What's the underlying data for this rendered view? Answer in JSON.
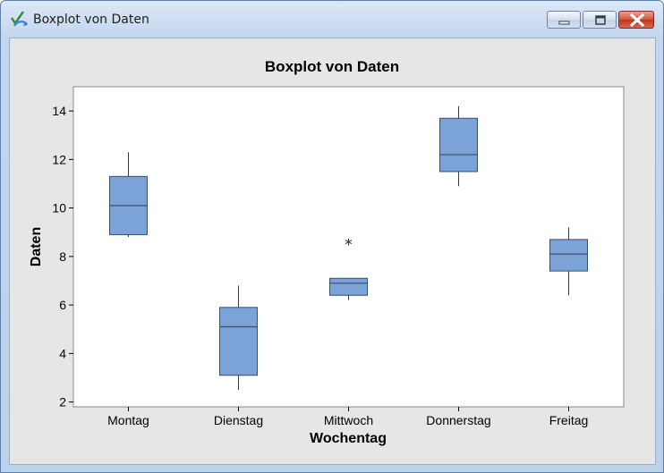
{
  "window": {
    "title": "Boxplot von Daten",
    "icon": "minitab-graph-icon",
    "controls": {
      "minimize": "minimize-icon",
      "maximize": "maximize-icon",
      "close": "close-icon"
    }
  },
  "chart_data": {
    "type": "boxplot",
    "title": "Boxplot von Daten",
    "xlabel": "Wochentag",
    "ylabel": "Daten",
    "ylim": [
      1.8,
      15.0
    ],
    "yticks": [
      2,
      4,
      6,
      8,
      10,
      12,
      14
    ],
    "ytick_labels": [
      "2",
      "4",
      "6",
      "8",
      "10",
      "12",
      "14"
    ],
    "categories": [
      "Montag",
      "Dienstag",
      "Mittwoch",
      "Donnerstag",
      "Freitag"
    ],
    "boxes": [
      {
        "category": "Montag",
        "whisker_low": 8.8,
        "q1": 8.9,
        "median": 10.1,
        "q3": 11.3,
        "whisker_high": 12.3,
        "outliers": []
      },
      {
        "category": "Dienstag",
        "whisker_low": 2.5,
        "q1": 3.1,
        "median": 5.1,
        "q3": 5.9,
        "whisker_high": 6.8,
        "outliers": []
      },
      {
        "category": "Mittwoch",
        "whisker_low": 6.2,
        "q1": 6.4,
        "median": 6.9,
        "q3": 7.1,
        "whisker_high": 7.1,
        "outliers": [
          8.6
        ]
      },
      {
        "category": "Donnerstag",
        "whisker_low": 10.9,
        "q1": 11.5,
        "median": 12.2,
        "q3": 13.7,
        "whisker_high": 14.2,
        "outliers": []
      },
      {
        "category": "Freitag",
        "whisker_low": 6.4,
        "q1": 7.4,
        "median": 8.1,
        "q3": 8.7,
        "whisker_high": 9.2,
        "outliers": []
      }
    ],
    "box_color": "#7ba3d8",
    "box_edge_color": "#3a4f6a",
    "grid": false,
    "legend": false
  }
}
